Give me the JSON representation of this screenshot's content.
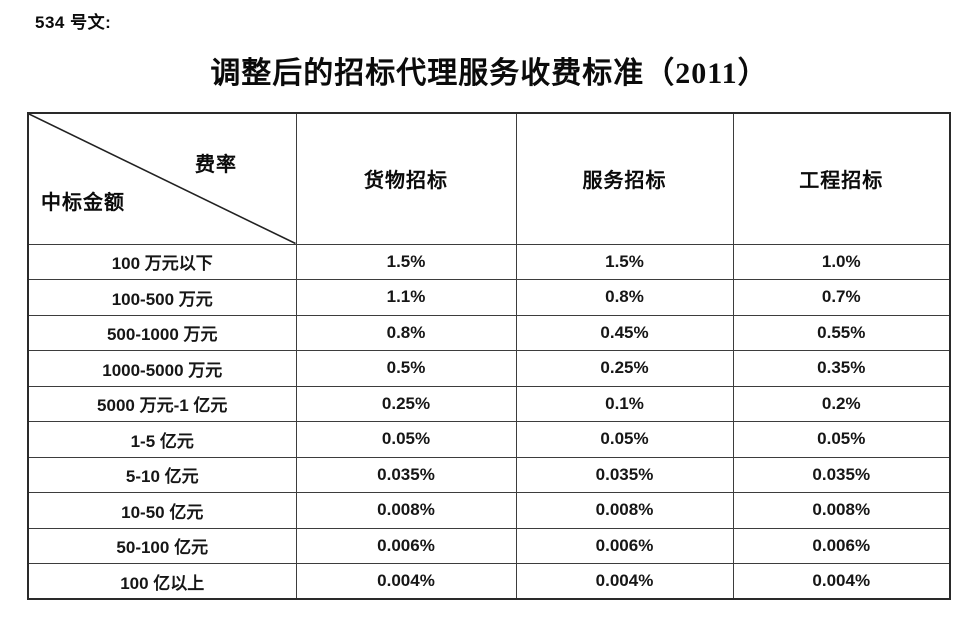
{
  "page": {
    "doc_label": "534 号文:",
    "title": "调整后的招标代理服务收费标准（2011）"
  },
  "table": {
    "corner": {
      "top_right": "费率",
      "bottom_left": "中标金额"
    },
    "columns": [
      "货物招标",
      "服务招标",
      "工程招标"
    ],
    "rows": [
      {
        "label": "100 万元以下",
        "values": [
          "1.5%",
          "1.5%",
          "1.0%"
        ]
      },
      {
        "label": "100-500 万元",
        "values": [
          "1.1%",
          "0.8%",
          "0.7%"
        ]
      },
      {
        "label": "500-1000 万元",
        "values": [
          "0.8%",
          "0.45%",
          "0.55%"
        ]
      },
      {
        "label": "1000-5000 万元",
        "values": [
          "0.5%",
          "0.25%",
          "0.35%"
        ]
      },
      {
        "label": "5000 万元-1 亿元",
        "values": [
          "0.25%",
          "0.1%",
          "0.2%"
        ]
      },
      {
        "label": "1-5 亿元",
        "values": [
          "0.05%",
          "0.05%",
          "0.05%"
        ]
      },
      {
        "label": "5-10 亿元",
        "values": [
          "0.035%",
          "0.035%",
          "0.035%"
        ]
      },
      {
        "label": "10-50 亿元",
        "values": [
          "0.008%",
          "0.008%",
          "0.008%"
        ]
      },
      {
        "label": "50-100 亿元",
        "values": [
          "0.006%",
          "0.006%",
          "0.006%"
        ]
      },
      {
        "label": "100 亿以上",
        "values": [
          "0.004%",
          "0.004%",
          "0.004%"
        ]
      }
    ]
  },
  "colors": {
    "background": "#ffffff",
    "text": "#111111",
    "outer_border": "#2a2a2a",
    "inner_border": "#3d3d3d"
  }
}
